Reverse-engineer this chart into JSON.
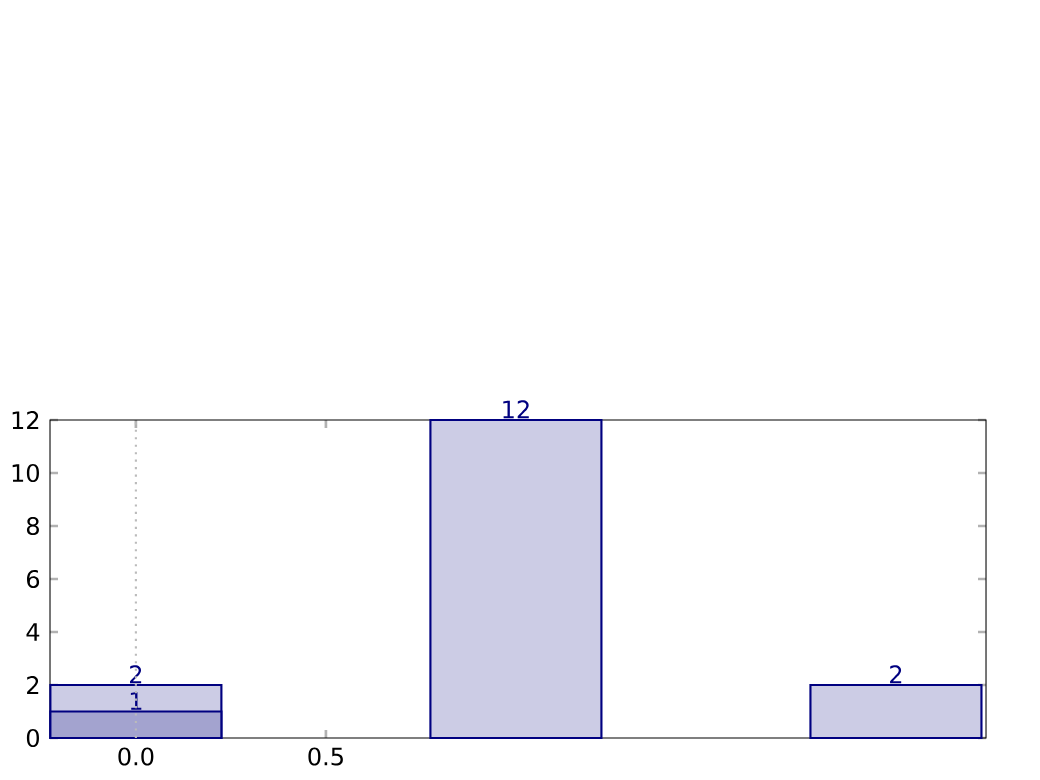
{
  "chart_data": {
    "type": "bar",
    "x": [
      0,
      1,
      2
    ],
    "series": [
      {
        "color": "#ccccE5",
        "values": [
          2,
          12,
          2
        ]
      },
      {
        "color": "#a3a3cf",
        "values": [
          1,
          null,
          null
        ]
      }
    ],
    "xlim": [
      -0.226,
      2.237
    ],
    "ylim": [
      0,
      12
    ],
    "xticks": [
      {
        "value": 0,
        "label": "0.0"
      },
      {
        "value": 0.5,
        "label": "0.5"
      }
    ],
    "yticks": [
      0,
      2,
      4,
      6,
      8,
      10,
      12
    ],
    "ref_lines": [
      {
        "axis": "x",
        "value": 0,
        "color": "#bbbbbb",
        "line_style": "dotted"
      }
    ],
    "data_labels": true,
    "grid": false
  }
}
